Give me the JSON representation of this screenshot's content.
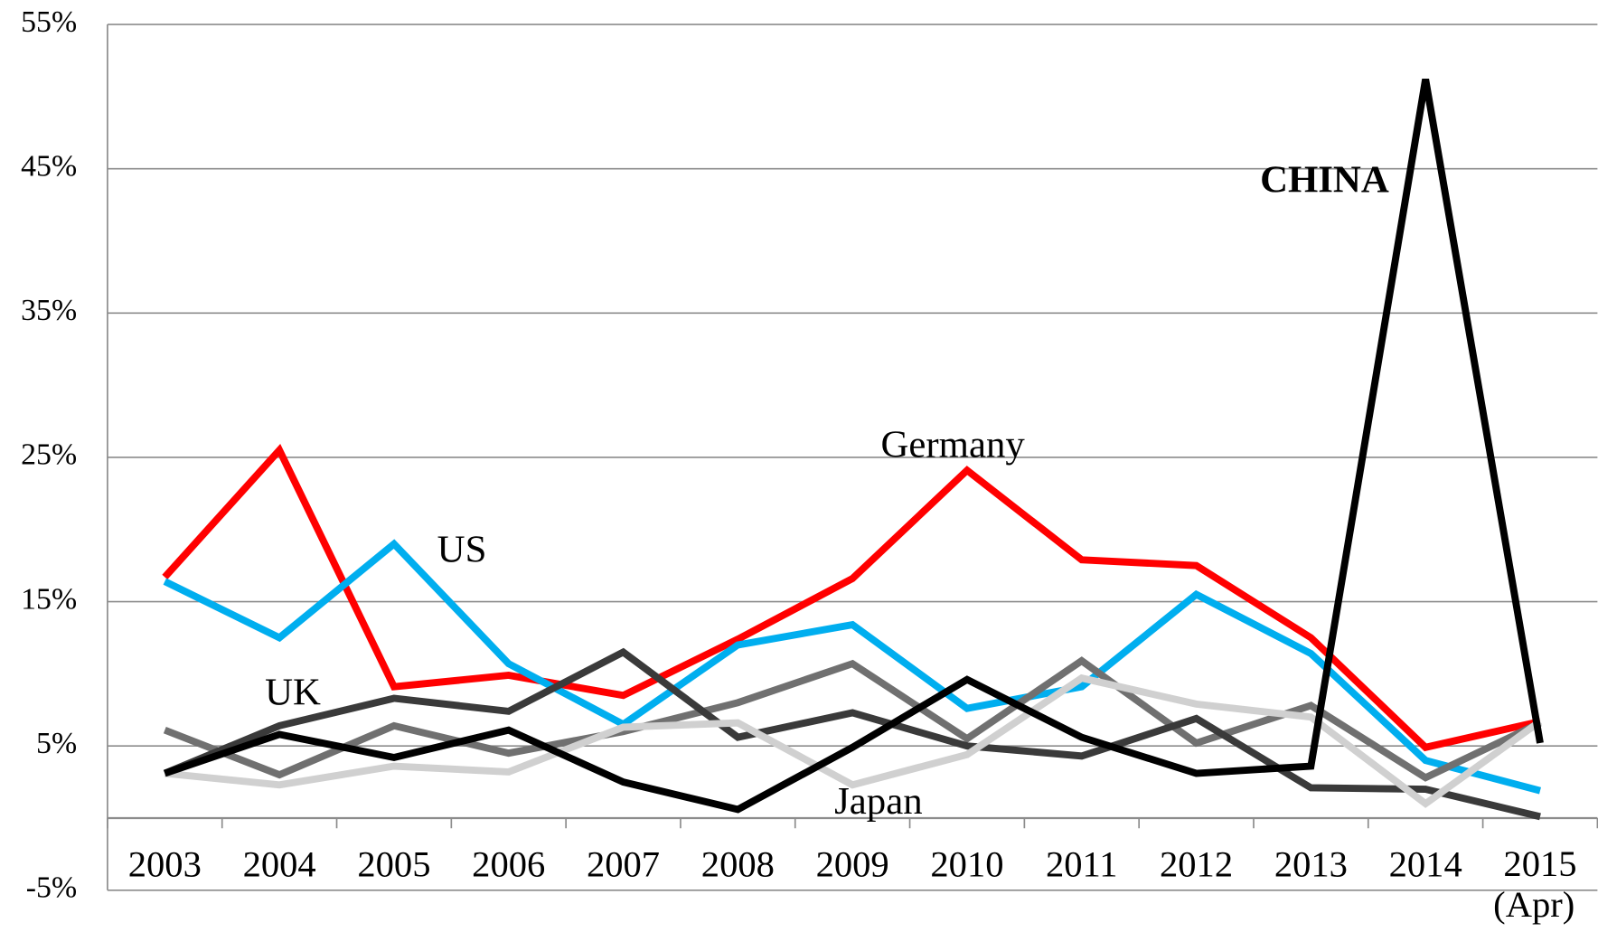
{
  "chart_data": {
    "type": "line",
    "categories": [
      "2003",
      "2004",
      "2005",
      "2006",
      "2007",
      "2008",
      "2009",
      "2010",
      "2011",
      "2012",
      "2013",
      "2014",
      "2015 (Apr)"
    ],
    "series": [
      {
        "name": "Germany",
        "color": "#ff0000",
        "values": [
          16.7,
          25.5,
          9.1,
          9.9,
          8.5,
          12.4,
          16.6,
          24.1,
          17.9,
          17.5,
          12.5,
          4.9,
          6.7
        ]
      },
      {
        "name": "US",
        "color": "#00aeef",
        "values": [
          16.4,
          12.5,
          19.0,
          10.7,
          6.5,
          12.0,
          13.4,
          7.6,
          9.1,
          15.5,
          11.4,
          4.0,
          1.9
        ]
      },
      {
        "color": "#707070",
        "values": [
          6.1,
          3.0,
          6.4,
          4.5,
          6.0,
          8.0,
          10.7,
          5.5,
          10.9,
          5.2,
          7.8,
          2.8,
          6.6
        ]
      },
      {
        "name": "UK",
        "color": "#3a3a3a",
        "values": [
          3.1,
          6.4,
          8.3,
          7.4,
          11.5,
          5.6,
          7.3,
          5.0,
          4.3,
          6.9,
          2.1,
          2.0,
          0.1
        ]
      },
      {
        "name": "Japan",
        "color": "#d0d0d0",
        "values": [
          3.1,
          2.3,
          3.6,
          3.2,
          6.3,
          6.6,
          2.3,
          4.4,
          9.7,
          7.9,
          7.0,
          1.0,
          6.7
        ]
      },
      {
        "name": "CHINA",
        "color": "#000000",
        "values": [
          3.1,
          5.8,
          4.2,
          6.1,
          2.5,
          0.6,
          4.9,
          9.6,
          5.6,
          3.1,
          3.6,
          51.2,
          5.2
        ]
      }
    ],
    "ylim": [
      -5,
      55
    ],
    "yticks": [
      {
        "value": -5,
        "label": "-5%"
      },
      {
        "value": 5,
        "label": "5%"
      },
      {
        "value": 15,
        "label": "15%"
      },
      {
        "value": 25,
        "label": "25%"
      },
      {
        "value": 35,
        "label": "35%"
      },
      {
        "value": 45,
        "label": "45%"
      },
      {
        "value": 55,
        "label": "55%"
      }
    ],
    "grid": true
  }
}
